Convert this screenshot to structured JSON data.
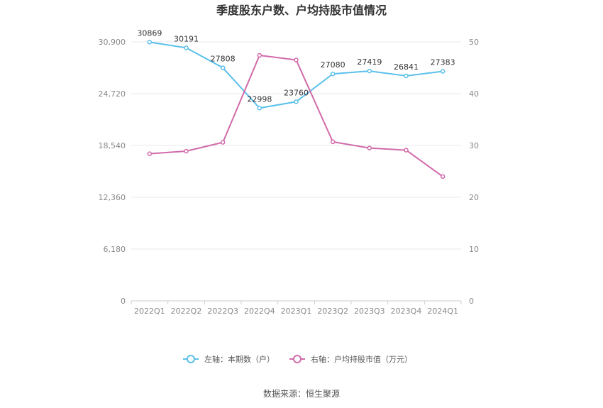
{
  "chart_data": {
    "type": "line",
    "title": "季度股东户数、户均持股市值情况",
    "categories": [
      "2022Q1",
      "2022Q2",
      "2022Q3",
      "2022Q4",
      "2023Q1",
      "2023Q2",
      "2023Q3",
      "2023Q4",
      "2024Q1"
    ],
    "series": [
      {
        "name": "左轴：本期数（户）",
        "axis": "left",
        "color": "#5bc0eb",
        "values": [
          30869,
          30191,
          27808,
          22998,
          23760,
          27080,
          27419,
          26841,
          27383
        ],
        "labels": [
          "30869",
          "30191",
          "27808",
          "22998",
          "23760",
          "27080",
          "27419",
          "26841",
          "27383"
        ]
      },
      {
        "name": "右轴：户均持股市值（万元）",
        "axis": "right",
        "color": "#d16aa9",
        "values": [
          28.4,
          28.9,
          30.6,
          47.4,
          46.5,
          30.7,
          29.5,
          29.1,
          24.0
        ]
      }
    ],
    "left_axis": {
      "ticks": [
        0,
        6180,
        12360,
        18540,
        24720,
        30900
      ],
      "tick_labels": [
        "0",
        "6,180",
        "12,360",
        "18,540",
        "24,720",
        "30,900"
      ],
      "ylim": [
        0,
        30900
      ]
    },
    "right_axis": {
      "ticks": [
        0,
        10,
        20,
        30,
        40,
        50
      ],
      "tick_labels": [
        "0",
        "10",
        "20",
        "30",
        "40",
        "50"
      ],
      "ylim": [
        0,
        50
      ]
    },
    "grid": true,
    "legend_position": "bottom"
  },
  "footer": {
    "source": "数据来源：恒生聚源"
  }
}
